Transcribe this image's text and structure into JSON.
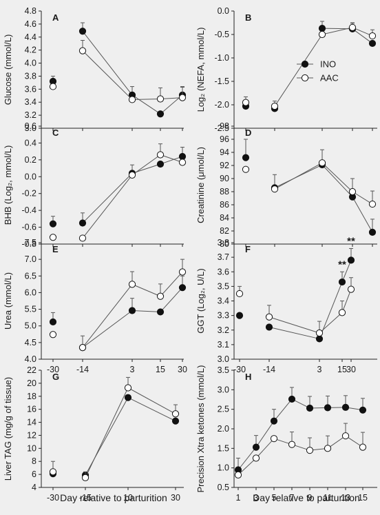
{
  "chart_data": [
    {
      "id": "A",
      "type": "line",
      "panel_label": "A",
      "ylabel": "Glucose (mmol/L)",
      "ylim": [
        3.0,
        4.8
      ],
      "yticks": [
        "3.0",
        "3.2",
        "3.4",
        "3.6",
        "3.8",
        "4.0",
        "4.2",
        "4.4",
        "4.6",
        "4.8"
      ],
      "x_categories": [
        "-30",
        "-14",
        "3",
        "15",
        "30"
      ],
      "x_tick_labels": [],
      "series": [
        {
          "name": "INO",
          "filled": true,
          "points": [
            {
              "x": "-30",
              "y": 3.72,
              "err": 0.08
            },
            {
              "x": "-14",
              "y": 4.49,
              "err": 0.13
            },
            {
              "x": "3",
              "y": 3.51,
              "err": 0.13
            },
            {
              "x": "15",
              "y": 3.22,
              "err": 0.0
            },
            {
              "x": "30",
              "y": 3.51,
              "err": 0.12
            }
          ],
          "connect": [
            [
              1,
              2
            ],
            [
              2,
              3
            ],
            [
              3,
              4
            ]
          ]
        },
        {
          "name": "AAC",
          "filled": false,
          "points": [
            {
              "x": "-30",
              "y": 3.64,
              "err": 0.0
            },
            {
              "x": "-14",
              "y": 4.19,
              "err": 0.16
            },
            {
              "x": "3",
              "y": 3.44,
              "err": 0.0
            },
            {
              "x": "15",
              "y": 3.45,
              "err": 0.17
            },
            {
              "x": "30",
              "y": 3.47,
              "err": 0.17
            }
          ],
          "connect": [
            [
              1,
              2
            ],
            [
              2,
              3
            ],
            [
              3,
              4
            ]
          ]
        }
      ]
    },
    {
      "id": "B",
      "type": "line",
      "panel_label": "B",
      "ylabel": "Log₂ (NEFA, mmol/L)",
      "ylim": [
        -2.5,
        0.0
      ],
      "yticks": [
        "-2.5",
        "-2.0",
        "-1.5",
        "-1.0",
        "-0.5",
        "0.0"
      ],
      "x_categories": [
        "-30",
        "-14",
        "3",
        "15",
        "30"
      ],
      "x_tick_labels": [],
      "series": [
        {
          "name": "INO",
          "filled": true,
          "points": [
            {
              "x": "-30",
              "y": -2.03,
              "err": 0.0
            },
            {
              "x": "-14",
              "y": -2.08,
              "err": 0.0
            },
            {
              "x": "3",
              "y": -0.37,
              "err": 0.15
            },
            {
              "x": "15",
              "y": -0.38,
              "err": 0.12
            },
            {
              "x": "30",
              "y": -0.69,
              "err": 0.0
            }
          ],
          "connect": [
            [
              2,
              3
            ],
            [
              3,
              4
            ]
          ]
        },
        {
          "name": "AAC",
          "filled": false,
          "points": [
            {
              "x": "-30",
              "y": -1.95,
              "err": 0.12
            },
            {
              "x": "-14",
              "y": -2.03,
              "err": 0.11
            },
            {
              "x": "3",
              "y": -0.5,
              "err": 0.0
            },
            {
              "x": "15",
              "y": -0.35,
              "err": 0.1
            },
            {
              "x": "30",
              "y": -0.53,
              "err": 0.13
            }
          ],
          "connect": [
            [
              1,
              2
            ],
            [
              2,
              3
            ],
            [
              3,
              4
            ]
          ]
        }
      ],
      "legend": {
        "placement": "right",
        "entries": [
          "INO",
          "AAC"
        ]
      }
    },
    {
      "id": "C",
      "type": "line",
      "panel_label": "C",
      "ylabel": "BHB (Log₂, mmol/L)",
      "ylim": [
        -0.8,
        0.6
      ],
      "yticks": [
        "-0.8",
        "-0.6",
        "-0.4",
        "-0.2",
        "0.0",
        "0.2",
        "0.4",
        "0.6"
      ],
      "x_categories": [
        "-30",
        "-14",
        "3",
        "15",
        "30"
      ],
      "x_tick_labels": [],
      "series": [
        {
          "name": "INO",
          "filled": true,
          "points": [
            {
              "x": "-30",
              "y": -0.56,
              "err": 0.09
            },
            {
              "x": "-14",
              "y": -0.55,
              "err": 0.12
            },
            {
              "x": "3",
              "y": 0.04,
              "err": 0.1
            },
            {
              "x": "15",
              "y": 0.15,
              "err": 0.0
            },
            {
              "x": "30",
              "y": 0.24,
              "err": 0.11
            }
          ],
          "connect": [
            [
              1,
              2
            ],
            [
              2,
              3
            ],
            [
              3,
              4
            ]
          ]
        },
        {
          "name": "AAC",
          "filled": false,
          "points": [
            {
              "x": "-30",
              "y": -0.72,
              "err": 0.0
            },
            {
              "x": "-14",
              "y": -0.73,
              "err": 0.0
            },
            {
              "x": "3",
              "y": 0.02,
              "err": 0.0
            },
            {
              "x": "15",
              "y": 0.26,
              "err": 0.13
            },
            {
              "x": "30",
              "y": 0.17,
              "err": 0.0
            }
          ],
          "connect": [
            [
              1,
              2
            ],
            [
              2,
              3
            ],
            [
              3,
              4
            ]
          ]
        }
      ]
    },
    {
      "id": "D",
      "type": "line",
      "panel_label": "D",
      "ylabel": "Creatinine (μmol/L)",
      "ylim": [
        80,
        98
      ],
      "yticks": [
        "80",
        "82",
        "84",
        "86",
        "88",
        "90",
        "92",
        "94",
        "96",
        "98"
      ],
      "x_categories": [
        "-30",
        "-14",
        "3",
        "15",
        "30"
      ],
      "x_tick_labels": [],
      "series": [
        {
          "name": "INO",
          "filled": true,
          "points": [
            {
              "x": "-30",
              "y": 93.2,
              "err": 2.8
            },
            {
              "x": "-14",
              "y": 88.6,
              "err": 2.0
            },
            {
              "x": "3",
              "y": 92.1,
              "err": 0.0
            },
            {
              "x": "15",
              "y": 87.2,
              "err": 0.0
            },
            {
              "x": "30",
              "y": 81.8,
              "err": 2.0
            }
          ],
          "connect": [
            [
              1,
              2
            ],
            [
              2,
              3
            ],
            [
              3,
              4
            ]
          ]
        },
        {
          "name": "AAC",
          "filled": false,
          "points": [
            {
              "x": "-30",
              "y": 91.4,
              "err": 0.0
            },
            {
              "x": "-14",
              "y": 88.4,
              "err": 0.0
            },
            {
              "x": "3",
              "y": 92.4,
              "err": 2.0
            },
            {
              "x": "15",
              "y": 88.0,
              "err": 2.0
            },
            {
              "x": "30",
              "y": 86.1,
              "err": 2.0
            }
          ],
          "connect": [
            [
              1,
              2
            ],
            [
              2,
              3
            ],
            [
              3,
              4
            ]
          ]
        }
      ]
    },
    {
      "id": "E",
      "type": "line",
      "panel_label": "E",
      "ylabel": "Urea (mmol/L)",
      "ylim": [
        4.0,
        7.5
      ],
      "yticks": [
        "4.0",
        "4.5",
        "5.0",
        "5.5",
        "6.0",
        "6.5",
        "7.0",
        "7.5"
      ],
      "x_categories": [
        "-30",
        "-14",
        "3",
        "15",
        "30"
      ],
      "x_tick_labels": [
        "-30",
        "-14",
        "3",
        "15",
        "30"
      ],
      "series": [
        {
          "name": "INO",
          "filled": true,
          "points": [
            {
              "x": "-30",
              "y": 5.12,
              "err": 0.28
            },
            {
              "x": "-14",
              "y": 4.35,
              "err": 0.35
            },
            {
              "x": "3",
              "y": 5.46,
              "err": 0.37
            },
            {
              "x": "15",
              "y": 5.42,
              "err": 0.0
            },
            {
              "x": "30",
              "y": 6.15,
              "err": 0.35
            }
          ],
          "connect": [
            [
              1,
              2
            ],
            [
              2,
              3
            ],
            [
              3,
              4
            ]
          ]
        },
        {
          "name": "AAC",
          "filled": false,
          "points": [
            {
              "x": "-30",
              "y": 4.74,
              "err": 0.0
            },
            {
              "x": "-14",
              "y": 4.35,
              "err": 0.0
            },
            {
              "x": "3",
              "y": 6.25,
              "err": 0.38
            },
            {
              "x": "15",
              "y": 5.89,
              "err": 0.37
            },
            {
              "x": "30",
              "y": 6.62,
              "err": 0.38
            }
          ],
          "connect": [
            [
              1,
              2
            ],
            [
              2,
              3
            ],
            [
              3,
              4
            ]
          ]
        }
      ]
    },
    {
      "id": "F",
      "type": "line",
      "panel_label": "F",
      "ylabel": "GGT (Log₂, U/L)",
      "ylim": [
        3.0,
        3.8
      ],
      "yticks": [
        "3.0",
        "3.1",
        "3.2",
        "3.3",
        "3.4",
        "3.5",
        "3.6",
        "3.7",
        "3.8"
      ],
      "x_categories": [
        "-30",
        "-14",
        "3",
        "15",
        "30"
      ],
      "x_tick_labels": [
        "-30",
        "-14",
        "3",
        "15",
        "30"
      ],
      "series": [
        {
          "name": "INO",
          "filled": true,
          "points": [
            {
              "x": "-30",
              "y": 3.3,
              "err": 0.0
            },
            {
              "x": "-14",
              "y": 3.22,
              "err": 0.0
            },
            {
              "x": "3",
              "y": 3.14,
              "err": 0.0
            },
            {
              "x": "15",
              "y": 3.53,
              "err": 0.07
            },
            {
              "x": "30",
              "y": 3.68,
              "err": 0.08
            }
          ],
          "connect": [
            [
              1,
              2
            ],
            [
              2,
              3
            ],
            [
              3,
              4
            ]
          ]
        },
        {
          "name": "AAC",
          "filled": false,
          "points": [
            {
              "x": "-30",
              "y": 3.45,
              "err": 0.05
            },
            {
              "x": "-14",
              "y": 3.29,
              "err": 0.08
            },
            {
              "x": "3",
              "y": 3.18,
              "err": 0.08
            },
            {
              "x": "15",
              "y": 3.32,
              "err": 0.08
            },
            {
              "x": "30",
              "y": 3.48,
              "err": 0.08
            }
          ],
          "connect": [
            [
              1,
              2
            ],
            [
              2,
              3
            ],
            [
              3,
              4
            ]
          ]
        }
      ],
      "annotations": [
        {
          "x": "15",
          "text": "**"
        },
        {
          "x": "30",
          "text": "**"
        }
      ]
    },
    {
      "id": "G",
      "type": "line",
      "panel_label": "G",
      "ylabel": "Liver TAG (mg/g of tissue)",
      "ylim": [
        4,
        22
      ],
      "yticks": [
        "4",
        "6",
        "8",
        "10",
        "12",
        "14",
        "16",
        "18",
        "20",
        "22"
      ],
      "x_categories": [
        "-30",
        "-15",
        "10",
        "30"
      ],
      "x_tick_labels": [
        "-30",
        "-15",
        "10",
        "30"
      ],
      "xlabel": "Day relative to parturition",
      "series": [
        {
          "name": "INO",
          "filled": true,
          "points": [
            {
              "x": "-30",
              "y": 6.1,
              "err": 0.0
            },
            {
              "x": "-15",
              "y": 5.9,
              "err": 0.0
            },
            {
              "x": "10",
              "y": 17.8,
              "err": 0.0
            },
            {
              "x": "30",
              "y": 14.2,
              "err": 0.0
            }
          ],
          "connect": [
            [
              1,
              2
            ],
            [
              2,
              3
            ]
          ]
        },
        {
          "name": "AAC",
          "filled": false,
          "points": [
            {
              "x": "-30",
              "y": 6.4,
              "err": 1.6
            },
            {
              "x": "-15",
              "y": 5.5,
              "err": 0.9
            },
            {
              "x": "10",
              "y": 19.3,
              "err": 1.6
            },
            {
              "x": "30",
              "y": 15.3,
              "err": 1.4
            }
          ],
          "connect": [
            [
              1,
              2
            ],
            [
              2,
              3
            ]
          ]
        }
      ]
    },
    {
      "id": "H",
      "type": "line",
      "panel_label": "H",
      "ylabel": "Precision Xtra ketones (mmol/L)",
      "ylim": [
        0.5,
        3.5
      ],
      "yticks": [
        "0.5",
        "1.0",
        "1.5",
        "2.0",
        "2.5",
        "3.0",
        "3.5"
      ],
      "x_categories": [
        "1",
        "3",
        "5",
        "7",
        "9",
        "11",
        "13",
        "15"
      ],
      "x_tick_labels": [
        "1",
        "3",
        "5",
        "7",
        "9",
        "11",
        "13",
        "15"
      ],
      "xlabel": "Day relative to parturition",
      "series": [
        {
          "name": "INO",
          "filled": true,
          "points": [
            {
              "x": "1",
              "y": 0.95,
              "err": 0.3
            },
            {
              "x": "3",
              "y": 1.53,
              "err": 0.3
            },
            {
              "x": "5",
              "y": 2.2,
              "err": 0.3
            },
            {
              "x": "7",
              "y": 2.76,
              "err": 0.3
            },
            {
              "x": "9",
              "y": 2.53,
              "err": 0.3
            },
            {
              "x": "11",
              "y": 2.54,
              "err": 0.3
            },
            {
              "x": "13",
              "y": 2.55,
              "err": 0.3
            },
            {
              "x": "15",
              "y": 2.48,
              "err": 0.3
            }
          ],
          "connect": [
            [
              0,
              1
            ],
            [
              1,
              2
            ],
            [
              2,
              3
            ],
            [
              3,
              4
            ],
            [
              4,
              5
            ],
            [
              5,
              6
            ],
            [
              6,
              7
            ]
          ]
        },
        {
          "name": "AAC",
          "filled": false,
          "points": [
            {
              "x": "1",
              "y": 0.82,
              "err": 0.0
            },
            {
              "x": "3",
              "y": 1.25,
              "err": 0.0
            },
            {
              "x": "5",
              "y": 1.75,
              "err": 0.0
            },
            {
              "x": "7",
              "y": 1.6,
              "err": 0.32
            },
            {
              "x": "9",
              "y": 1.45,
              "err": 0.32
            },
            {
              "x": "11",
              "y": 1.5,
              "err": 0.32
            },
            {
              "x": "13",
              "y": 1.82,
              "err": 0.32
            },
            {
              "x": "15",
              "y": 1.53,
              "err": 0.38
            }
          ],
          "connect": [
            [
              0,
              1
            ],
            [
              1,
              2
            ],
            [
              2,
              3
            ],
            [
              3,
              4
            ],
            [
              4,
              5
            ],
            [
              5,
              6
            ],
            [
              6,
              7
            ]
          ]
        }
      ]
    }
  ]
}
